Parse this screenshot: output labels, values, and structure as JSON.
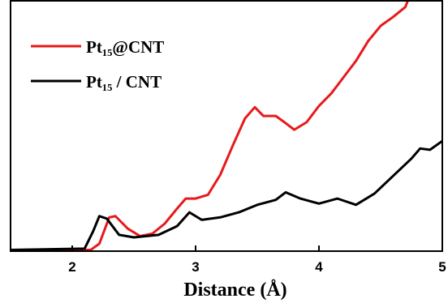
{
  "chart_data": {
    "type": "line",
    "x_label": "Distance (Å)",
    "xlim": [
      1.5,
      5
    ],
    "xticks": [
      2,
      3,
      4,
      5
    ],
    "ylim": [
      0,
      10
    ],
    "legend": "upper left",
    "series": [
      {
        "name": "Pt₁₅@CNT",
        "color": "#e8191b",
        "x": [
          1.5,
          2.15,
          2.22,
          2.3,
          2.35,
          2.45,
          2.55,
          2.65,
          2.75,
          2.85,
          2.92,
          3.0,
          3.1,
          3.2,
          3.3,
          3.4,
          3.48,
          3.55,
          3.65,
          3.72,
          3.8,
          3.9,
          4.0,
          4.1,
          4.2,
          4.3,
          4.4,
          4.5,
          4.6,
          4.7,
          4.72
        ],
        "values": [
          0.05,
          0.05,
          0.3,
          1.35,
          1.4,
          0.9,
          0.6,
          0.7,
          1.1,
          1.7,
          2.1,
          2.1,
          2.25,
          3.05,
          4.2,
          5.3,
          5.75,
          5.4,
          5.4,
          5.15,
          4.85,
          5.15,
          5.8,
          6.3,
          6.95,
          7.6,
          8.4,
          9.0,
          9.35,
          9.75,
          10
        ]
      },
      {
        "name": "Pt₁₅ / CNT",
        "color": "#000000",
        "x": [
          1.5,
          2.1,
          2.17,
          2.22,
          2.28,
          2.38,
          2.5,
          2.7,
          2.85,
          2.95,
          3.05,
          3.2,
          3.35,
          3.5,
          3.65,
          3.73,
          3.85,
          4.0,
          4.15,
          4.3,
          4.45,
          4.6,
          4.75,
          4.82,
          4.9,
          5.0
        ],
        "values": [
          0.05,
          0.1,
          0.8,
          1.4,
          1.3,
          0.65,
          0.55,
          0.65,
          1.0,
          1.55,
          1.25,
          1.35,
          1.55,
          1.85,
          2.05,
          2.35,
          2.1,
          1.9,
          2.1,
          1.85,
          2.3,
          3.0,
          3.7,
          4.1,
          4.05,
          4.4
        ]
      }
    ]
  }
}
